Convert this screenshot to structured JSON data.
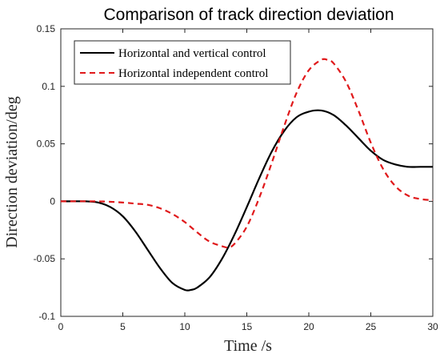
{
  "chart_data": {
    "type": "line",
    "title": "Comparison of track direction deviation",
    "xlabel": "Time /s",
    "ylabel": "Direction deviation/deg",
    "xlim": [
      0,
      30
    ],
    "ylim": [
      -0.1,
      0.15
    ],
    "xticks": [
      0,
      5,
      10,
      15,
      20,
      25,
      30
    ],
    "yticks": [
      -0.1,
      -0.05,
      0,
      0.05,
      0.1,
      0.15
    ],
    "xtick_labels": [
      "0",
      "5",
      "10",
      "15",
      "20",
      "25",
      "30"
    ],
    "ytick_labels": [
      "-0.1",
      "-0.05",
      "0",
      "0.05",
      "0.1",
      "0.15"
    ],
    "grid": false,
    "legend_position": "top-left",
    "series": [
      {
        "name": "Horizontal and vertical control",
        "color": "#000000",
        "style": "solid",
        "x": [
          0,
          2,
          3,
          4,
          5,
          6,
          7,
          8,
          9,
          10,
          10.5,
          11,
          12,
          13,
          14,
          15,
          16,
          17,
          18,
          19,
          20,
          21,
          22,
          23,
          24,
          25,
          26,
          27,
          28,
          29,
          30
        ],
        "y": [
          0,
          0,
          -0.001,
          -0.005,
          -0.013,
          -0.026,
          -0.042,
          -0.058,
          -0.071,
          -0.077,
          -0.077,
          -0.075,
          -0.066,
          -0.05,
          -0.029,
          -0.005,
          0.02,
          0.043,
          0.061,
          0.073,
          0.078,
          0.079,
          0.075,
          0.066,
          0.055,
          0.044,
          0.036,
          0.032,
          0.03,
          0.03,
          0.03
        ]
      },
      {
        "name": "Horizontal independent control",
        "color": "#e0191b",
        "style": "dashed",
        "x": [
          0,
          3,
          5,
          6,
          7,
          8,
          9,
          10,
          11,
          12,
          13,
          13.5,
          14,
          15,
          16,
          17,
          18,
          19,
          20,
          21,
          21.5,
          22,
          23,
          24,
          25,
          26,
          27,
          28,
          29,
          30
        ],
        "y": [
          0,
          0,
          -0.001,
          -0.002,
          -0.003,
          -0.006,
          -0.011,
          -0.018,
          -0.027,
          -0.035,
          -0.039,
          -0.04,
          -0.037,
          -0.022,
          0.003,
          0.033,
          0.065,
          0.094,
          0.114,
          0.123,
          0.123,
          0.12,
          0.104,
          0.079,
          0.051,
          0.028,
          0.013,
          0.005,
          0.002,
          0.001
        ]
      }
    ]
  }
}
